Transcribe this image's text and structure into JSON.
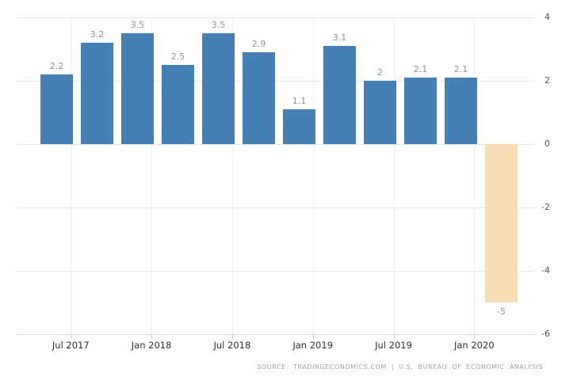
{
  "chart_data": {
    "type": "bar",
    "title": "",
    "xlabel": "",
    "ylabel": "",
    "values": [
      2.2,
      3.2,
      3.5,
      2.5,
      3.5,
      2.9,
      1.1,
      3.1,
      2,
      2.1,
      2.1,
      -5
    ],
    "bar_types": [
      "actual",
      "actual",
      "actual",
      "actual",
      "actual",
      "actual",
      "actual",
      "actual",
      "actual",
      "actual",
      "actual",
      "forecast"
    ],
    "colors": {
      "actual": "#4680b2",
      "forecast": "#f5deb3"
    },
    "x_tick_labels": [
      "Jul 2017",
      "Jan 2018",
      "Jul 2018",
      "Jan 2019",
      "Jul 2019",
      "Jan 2020"
    ],
    "y_ticks": [
      4,
      2,
      0,
      -2,
      -4,
      -6
    ],
    "ylim": [
      -6,
      4
    ],
    "grid": true,
    "legend_position": "none",
    "value_labels_shown": true
  },
  "footer": {
    "source_text": "SOURCE: TRADINGECONOMICS.COM | U.S. BUREAU OF ECONOMIC ANALYSIS"
  }
}
